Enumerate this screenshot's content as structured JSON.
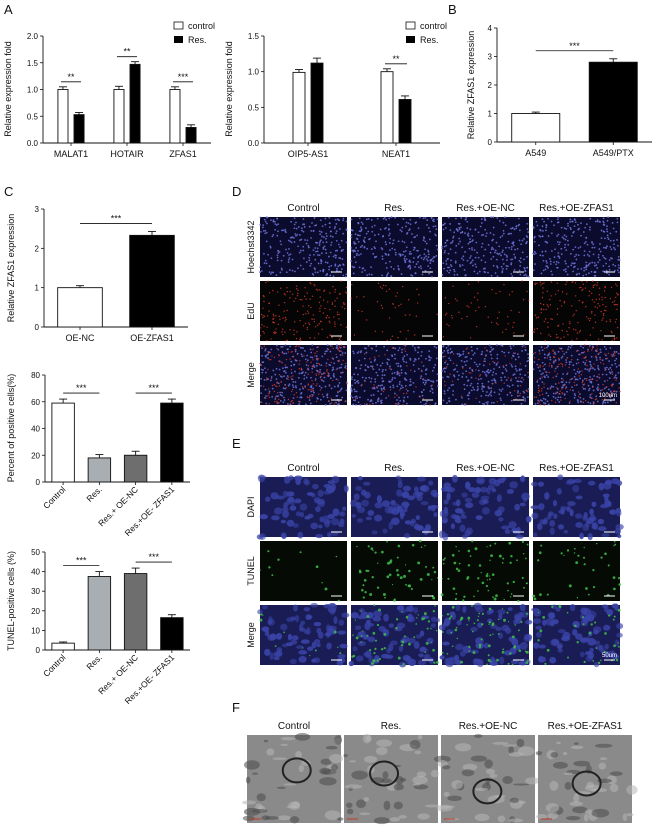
{
  "panels": {
    "A": "A",
    "B": "B",
    "C": "C",
    "D": "D",
    "E": "E",
    "F": "F"
  },
  "legend": {
    "control": "control",
    "res": "Res."
  },
  "colors": {
    "control_fill": "#ffffff",
    "res_fill": "#000000",
    "light_gray": "#a9aeb3",
    "dark_gray": "#6e6e6e",
    "hoechst_bg": "#0b0b2e",
    "hoechst_dot": "#6f74d8",
    "edu_dot": "#d23a2a",
    "dapi_bg": "#1a1d55",
    "dapi_cell": "#3a44a8",
    "tunel_dot": "#3fbf4a",
    "tem_bg": "#8a8a8a"
  },
  "chart_data": [
    {
      "id": "A1",
      "type": "bar",
      "categories": [
        "MALAT1",
        "HOTAIR",
        "ZFAS1"
      ],
      "series": [
        {
          "name": "control",
          "values": [
            1.0,
            1.0,
            1.0
          ],
          "errors": [
            0.05,
            0.06,
            0.05
          ]
        },
        {
          "name": "Res.",
          "values": [
            0.53,
            1.47,
            0.29
          ],
          "errors": [
            0.04,
            0.05,
            0.05
          ]
        }
      ],
      "ylabel": "Relative expression fold",
      "ylim": [
        0,
        2.0
      ],
      "yticks": [
        "0.0",
        "0.5",
        "1.0",
        "1.5",
        "2.0"
      ],
      "significance": [
        "**",
        "**",
        "***"
      ]
    },
    {
      "id": "A2",
      "type": "bar",
      "categories": [
        "OIP5-AS1",
        "NEAT1"
      ],
      "series": [
        {
          "name": "control",
          "values": [
            0.99,
            1.0
          ],
          "errors": [
            0.04,
            0.04
          ]
        },
        {
          "name": "Res.",
          "values": [
            1.12,
            0.61
          ],
          "errors": [
            0.07,
            0.05
          ]
        }
      ],
      "ylabel": "Relative expression fold",
      "ylim": [
        0,
        1.5
      ],
      "yticks": [
        "0.0",
        "0.5",
        "1.0",
        "1.5"
      ],
      "significance": [
        "",
        "**"
      ]
    },
    {
      "id": "B",
      "type": "bar",
      "categories": [
        "A549",
        "A549/PTX"
      ],
      "values": [
        1.0,
        2.8
      ],
      "errors": [
        0.05,
        0.12
      ],
      "colors": [
        "#ffffff",
        "#000000"
      ],
      "ylabel": "Relative ZFAS1 expression",
      "ylim": [
        0,
        4
      ],
      "yticks": [
        "0",
        "1",
        "2",
        "3",
        "4"
      ],
      "significance": "***"
    },
    {
      "id": "C1",
      "type": "bar",
      "categories": [
        "OE-NC",
        "OE-ZFAS1"
      ],
      "values": [
        1.0,
        2.33
      ],
      "errors": [
        0.05,
        0.1
      ],
      "colors": [
        "#ffffff",
        "#000000"
      ],
      "ylabel": "Relative ZFAS1 expression",
      "ylim": [
        0,
        3
      ],
      "yticks": [
        "0",
        "1",
        "2",
        "3"
      ],
      "significance": "***"
    },
    {
      "id": "C2",
      "type": "bar",
      "categories": [
        "Control",
        "Res.",
        "Res.+ OE-NC",
        "Res.+OE- ZFAS1"
      ],
      "values": [
        59,
        18,
        20,
        59
      ],
      "errors": [
        3,
        2.5,
        3,
        3
      ],
      "colors": [
        "#ffffff",
        "#a9aeb3",
        "#6e6e6e",
        "#000000"
      ],
      "ylabel": "Percent of positive cells(%)",
      "ylim": [
        0,
        80
      ],
      "yticks": [
        "0",
        "20",
        "40",
        "60",
        "80"
      ],
      "significance": [
        "***",
        "***"
      ]
    },
    {
      "id": "C3",
      "type": "bar",
      "categories": [
        "Control",
        "Res.",
        "Res.+ OE-NC",
        "Res.+OE- ZFAS1"
      ],
      "values": [
        3.5,
        37.5,
        39,
        16.5
      ],
      "errors": [
        0.6,
        2.5,
        2.8,
        1.5
      ],
      "colors": [
        "#ffffff",
        "#a9aeb3",
        "#6e6e6e",
        "#000000"
      ],
      "ylabel": "TUNEL-positive cells (%)",
      "ylim": [
        0,
        50
      ],
      "yticks": [
        "0",
        "10",
        "20",
        "30",
        "40",
        "50"
      ],
      "significance": [
        "***",
        "***"
      ]
    }
  ],
  "micro": {
    "D_columns": [
      "Control",
      "Res.",
      "Res.+OE-NC",
      "Res.+OE-ZFAS1"
    ],
    "D_rows": [
      "Hoechst3342",
      "EdU",
      "Merge"
    ],
    "D_scale": "100um",
    "E_columns": [
      "Control",
      "Res.",
      "Res.+OE-NC",
      "Res.+OE-ZFAS1"
    ],
    "E_rows": [
      "DAPI",
      "TUNEL",
      "Merge"
    ],
    "E_scale": "50um",
    "F_columns": [
      "Control",
      "Res.",
      "Res.+OE-NC",
      "Res.+OE-ZFAS1"
    ]
  }
}
